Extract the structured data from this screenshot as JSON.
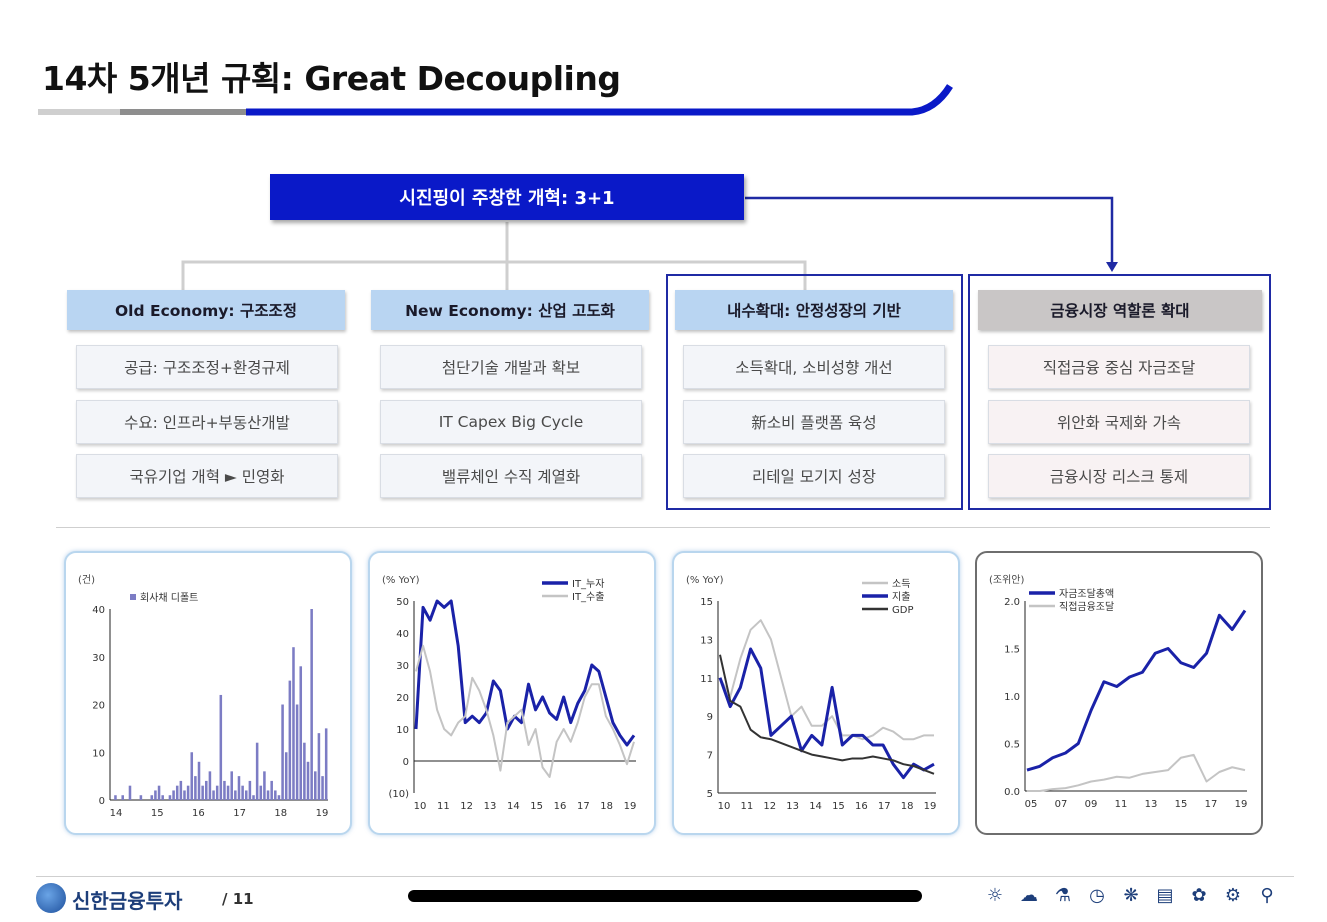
{
  "title": "14차 5개년 규획: Great Decoupling",
  "top_box": "시진핑이 주창한 개혁: 3+1",
  "columns": [
    {
      "header": "Old Economy: 구조조정",
      "items": [
        "공급: 구조조정+환경규제",
        "수요: 인프라+부동산개발",
        "국유기업 개혁 ► 민영화"
      ]
    },
    {
      "header": "New Economy: 산업 고도화",
      "items": [
        "첨단기술 개발과 확보",
        "IT Capex Big Cycle",
        "밸류체인 수직 계열화"
      ]
    },
    {
      "header": "내수확대: 안정성장의 기반",
      "items": [
        "소득확대, 소비성향 개선",
        "新소비 플랫폼 육성",
        "리테일 모기지 성장"
      ]
    },
    {
      "header": "금융시장 역할론 확대",
      "items": [
        "직접금융 중심 자금조달",
        "위안화 국제화 가속",
        "금융시장 리스크 통제"
      ]
    }
  ],
  "colors": {
    "navy": "#0a19c8",
    "frame": "#1f2aa4",
    "bar": "#7c7cc4",
    "line_dark": "#1a22a8",
    "line_light": "#c4c4c4",
    "line_black": "#333333"
  },
  "chart_data": [
    {
      "type": "bar",
      "unit_label": "(건)",
      "legend": [
        "회사채 디폴트"
      ],
      "ylim": [
        0,
        40
      ],
      "yticks": [
        "0",
        "10",
        "20",
        "30",
        "40"
      ],
      "xticks": [
        "14",
        "15",
        "16",
        "17",
        "18",
        "19"
      ],
      "series": [
        {
          "name": "회사채 디폴트",
          "values": [
            0,
            1,
            0,
            1,
            0,
            3,
            0,
            0,
            1,
            0,
            0,
            1,
            2,
            3,
            1,
            0,
            1,
            2,
            3,
            4,
            2,
            3,
            10,
            5,
            8,
            3,
            4,
            6,
            2,
            3,
            22,
            4,
            3,
            6,
            2,
            5,
            3,
            2,
            4,
            1,
            12,
            3,
            6,
            2,
            4,
            2,
            1,
            20,
            10,
            25,
            32,
            20,
            28,
            12,
            8,
            40,
            6,
            14,
            5,
            15
          ]
        }
      ]
    },
    {
      "type": "line",
      "unit_label": "(% YoY)",
      "ylim": [
        -10,
        50
      ],
      "yticks": [
        "(10)",
        "0",
        "10",
        "20",
        "30",
        "40",
        "50"
      ],
      "xticks": [
        "10",
        "11",
        "12",
        "13",
        "14",
        "15",
        "16",
        "17",
        "18",
        "19"
      ],
      "series": [
        {
          "name": "IT_누자",
          "values": [
            10,
            48,
            44,
            50,
            48,
            52,
            36,
            12,
            14,
            12,
            15,
            25,
            22,
            10,
            14,
            12,
            24,
            16,
            20,
            15,
            13,
            20,
            12,
            18,
            22,
            30,
            28,
            20,
            12,
            8,
            5,
            8
          ]
        },
        {
          "name": "IT_수출",
          "values": [
            28,
            36,
            28,
            16,
            10,
            8,
            12,
            14,
            26,
            22,
            16,
            8,
            -3,
            12,
            14,
            16,
            5,
            10,
            -2,
            -5,
            6,
            10,
            6,
            12,
            20,
            24,
            24,
            14,
            10,
            5,
            -1,
            6
          ]
        }
      ]
    },
    {
      "type": "line",
      "unit_label": "(% YoY)",
      "ylim": [
        5,
        15
      ],
      "yticks": [
        "5",
        "7",
        "9",
        "11",
        "13",
        "15"
      ],
      "xticks": [
        "10",
        "11",
        "12",
        "13",
        "14",
        "15",
        "16",
        "17",
        "18",
        "19"
      ],
      "series": [
        {
          "name": "소득",
          "values": [
            11,
            10,
            12,
            13.5,
            14,
            13,
            11,
            9,
            9.5,
            8.5,
            8.5,
            9,
            8,
            8,
            7.8,
            8,
            8.4,
            8.2,
            7.8,
            7.8,
            8,
            8
          ]
        },
        {
          "name": "지출",
          "values": [
            11,
            9.5,
            10.5,
            12.5,
            11.5,
            8,
            8.5,
            9,
            7.2,
            8,
            7.5,
            10.5,
            7.5,
            8,
            8,
            7.5,
            7.5,
            6.5,
            5.8,
            6.5,
            6.2,
            6.5
          ]
        },
        {
          "name": "GDP",
          "values": [
            12.2,
            9.8,
            9.5,
            8.3,
            7.9,
            7.8,
            7.6,
            7.4,
            7.2,
            7,
            6.9,
            6.8,
            6.7,
            6.8,
            6.8,
            6.9,
            6.8,
            6.7,
            6.5,
            6.4,
            6.2,
            6.0
          ]
        }
      ]
    },
    {
      "type": "line",
      "unit_label": "(조위안)",
      "ylim": [
        0,
        2
      ],
      "yticks": [
        "0.0",
        "0.5",
        "1.0",
        "1.5",
        "2.0"
      ],
      "xticks": [
        "05",
        "07",
        "09",
        "11",
        "13",
        "15",
        "17",
        "19"
      ],
      "series": [
        {
          "name": "자금조달총액",
          "values": [
            0.22,
            0.26,
            0.35,
            0.4,
            0.5,
            0.85,
            1.15,
            1.1,
            1.2,
            1.25,
            1.45,
            1.5,
            1.35,
            1.3,
            1.45,
            1.85,
            1.7,
            1.9
          ]
        },
        {
          "name": "직접금융조달",
          "values": [
            0,
            0,
            0.02,
            0.03,
            0.06,
            0.1,
            0.12,
            0.15,
            0.14,
            0.18,
            0.2,
            0.22,
            0.35,
            0.38,
            0.1,
            0.2,
            0.25,
            0.22
          ]
        }
      ]
    }
  ],
  "footer": {
    "brand": "신한금융투자",
    "page": "/ 11"
  },
  "footer_icons": [
    "lightbulb-icon",
    "cloud-icon",
    "flask-icon",
    "clock-icon",
    "fan-icon",
    "document-icon",
    "leaf-icon",
    "settings-icon",
    "bicycle-icon"
  ]
}
